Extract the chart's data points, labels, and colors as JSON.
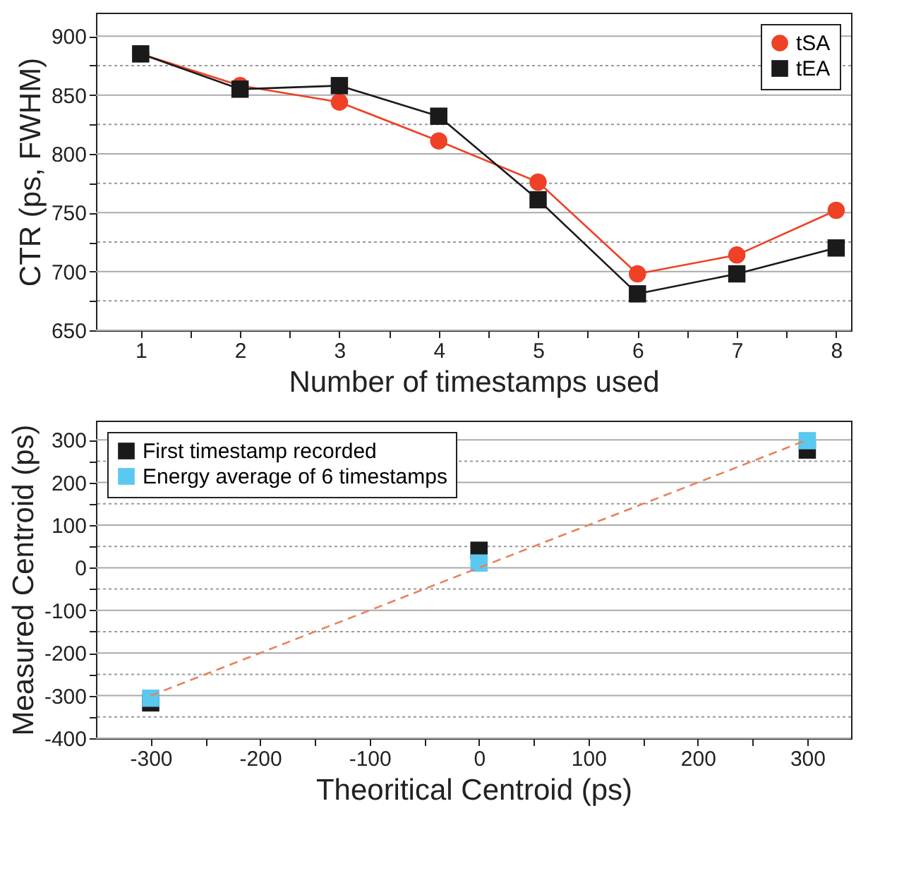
{
  "chart_data": [
    {
      "type": "line",
      "xlabel": "Number of timestamps used",
      "ylabel": "CTR (ps, FWHM)",
      "x": [
        1,
        2,
        3,
        4,
        5,
        6,
        7,
        8
      ],
      "series": [
        {
          "name": "tSA",
          "color": "#ee4126",
          "marker": "circle",
          "values": [
            885,
            858,
            844,
            811,
            776,
            698,
            714,
            752
          ]
        },
        {
          "name": "tEA",
          "color": "#1a1a1a",
          "marker": "square",
          "values": [
            885,
            855,
            858,
            832,
            761,
            681,
            698,
            720
          ]
        }
      ],
      "xlim": [
        0.55,
        8.15
      ],
      "xticks": [
        1,
        {
          "value": 1.5,
          "label": null
        },
        2,
        {
          "value": 2.5,
          "label": null
        },
        3,
        {
          "value": 3.5,
          "label": null
        },
        4,
        {
          "value": 4.5,
          "label": null
        },
        5,
        {
          "value": 5.5,
          "label": null
        },
        6,
        {
          "value": 6.5,
          "label": null
        },
        7,
        {
          "value": 7.5,
          "label": null
        },
        8
      ],
      "ylim": [
        650,
        920
      ],
      "yticks": [
        650,
        {
          "value": 675,
          "label": null
        },
        700,
        {
          "value": 725,
          "label": null
        },
        750,
        {
          "value": 775,
          "label": null
        },
        800,
        {
          "value": 825,
          "label": null
        },
        850,
        {
          "value": 875,
          "label": null
        },
        900
      ],
      "grid": "y",
      "legend": "top right",
      "line_style": "solid"
    },
    {
      "type": "scatter",
      "xlabel": "Theoritical Centroid (ps)",
      "ylabel": "Measured Centroid (ps)",
      "series": [
        {
          "name": "First timestamp recorded",
          "color": "#1a1a1a",
          "marker": "square",
          "x": [
            -300,
            0,
            300
          ],
          "values": [
            -317,
            41,
            276
          ]
        },
        {
          "name": "Energy average of 6 timestamps",
          "color": "#5bc8f0",
          "marker": "square",
          "x": [
            -300,
            0,
            300
          ],
          "values": [
            -306,
            11,
            298
          ]
        },
        {
          "type": "line",
          "color": "#e8825a",
          "marker": "none",
          "line_style": "dashed",
          "x": [
            -300,
            300
          ],
          "values": [
            -300,
            300
          ]
        }
      ],
      "xlim": [
        -350,
        340
      ],
      "xticks": [
        -300,
        {
          "value": -250,
          "label": null
        },
        -200,
        {
          "value": -150,
          "label": null
        },
        -100,
        {
          "value": -50,
          "label": null
        },
        0,
        {
          "value": 50,
          "label": null
        },
        100,
        {
          "value": 150,
          "label": null
        },
        200,
        {
          "value": 250,
          "label": null
        },
        300
      ],
      "ylim": [
        -400,
        345
      ],
      "yticks": [
        -400,
        {
          "value": -350,
          "label": null
        },
        -300,
        {
          "value": -250,
          "label": null
        },
        -200,
        {
          "value": -150,
          "label": null
        },
        -100,
        {
          "value": -50,
          "label": null
        },
        0,
        {
          "value": 50,
          "label": null
        },
        100,
        {
          "value": 150,
          "label": null
        },
        200,
        {
          "value": 250,
          "label": null
        },
        300
      ],
      "grid": "y",
      "legend": "top left"
    }
  ]
}
